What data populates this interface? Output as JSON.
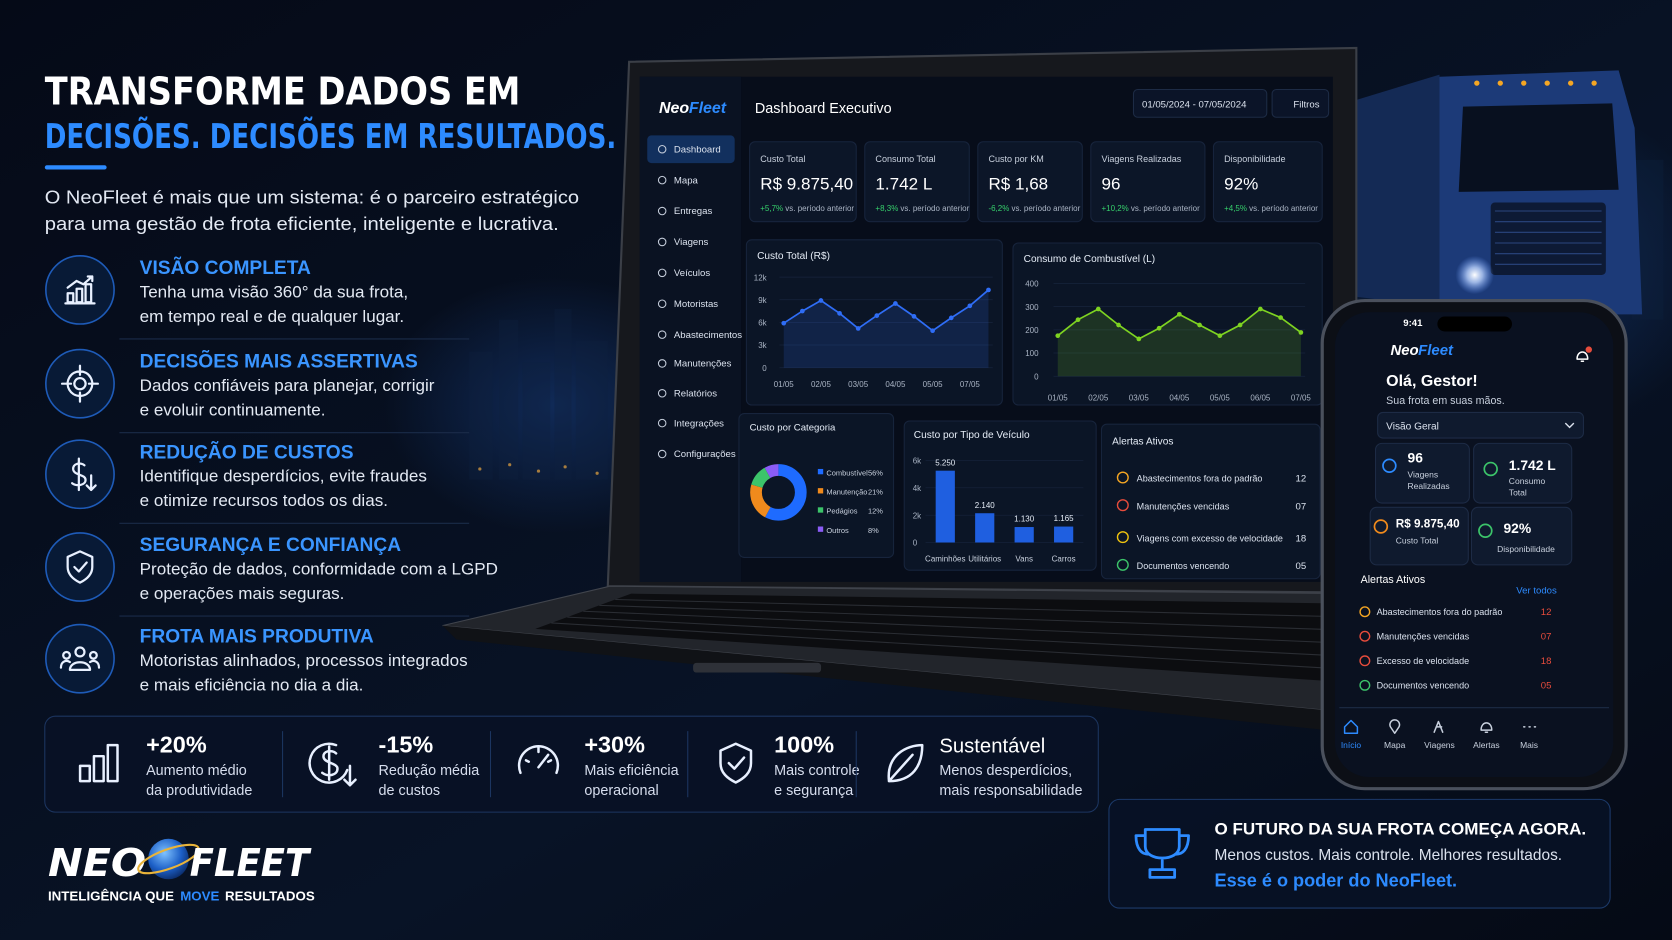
{
  "header": {
    "title_line1": "TRANSFORME DADOS EM",
    "title_line2": "DECISÕES. DECISÕES EM RESULTADOS.",
    "intro": [
      "O NeoFleet é mais que um sistema: é o parceiro estratégico",
      "para uma gestão de frota eficiente, inteligente e lucrativa."
    ]
  },
  "features": [
    {
      "title": "VISÃO COMPLETA",
      "description": [
        "Tenha uma visão 360° da sua frota,",
        "em tempo real e de qualquer lugar."
      ]
    },
    {
      "title": "DECISÕES MAIS ASSERTIVAS",
      "description": [
        "Dados confiáveis para planejar, corrigir",
        "e evoluir continuamente."
      ]
    },
    {
      "title": "REDUÇÃO DE CUSTOS",
      "description": [
        "Identifique desperdícios, evite fraudes",
        "e otimize recursos todos os dias."
      ]
    },
    {
      "title": "SEGURANÇA E CONFIANÇA",
      "description": [
        "Proteção de dados, conformidade com a LGPD",
        "e operações mais seguras."
      ]
    },
    {
      "title": "FROTA MAIS PRODUTIVA",
      "description": [
        "Motoristas alinhados, processos integrados",
        "e mais eficiência no dia a dia."
      ]
    }
  ],
  "stats": [
    {
      "value": "+20%",
      "description": [
        "Aumento médio",
        "da produtividade"
      ]
    },
    {
      "value": "-15%",
      "description": [
        "Redução média",
        "de custos"
      ]
    },
    {
      "value": "+30%",
      "description": [
        "Mais eficiência",
        "operacional"
      ]
    },
    {
      "value": "100%",
      "description": [
        "Mais controle",
        "e segurança"
      ]
    },
    {
      "value": "Sustentável",
      "description": [
        "Menos desperdícios,",
        "mais responsabilidade"
      ]
    }
  ],
  "brand": {
    "name_part1": "NEO",
    "name_part2": "FLEET",
    "tagline": [
      "INTELIGÊNCIA QUE",
      "MOVE",
      "RESULTADOS"
    ]
  },
  "dashboard": {
    "logo": [
      "Neo",
      "Fleet"
    ],
    "menu": [
      "Dashboard",
      "Mapa",
      "Entregas",
      "Viagens",
      "Veículos",
      "Motoristas",
      "Abastecimentos",
      "Manutenções",
      "Relatórios",
      "Integrações",
      "Configurações"
    ],
    "title": "Dashboard Executivo",
    "date_range": "01/05/2024 - 07/05/2024",
    "filter_button": "Filtros",
    "kpis": [
      {
        "label": "Custo Total",
        "value": "R$ 9.875,40",
        "change": "+5,7%",
        "comparison": "vs. período anterior"
      },
      {
        "label": "Consumo Total",
        "value": "1.742 L",
        "change": "+8,3%",
        "comparison": "vs. período anterior"
      },
      {
        "label": "Custo por KM",
        "value": "R$ 1,68",
        "change": "-6,2%",
        "comparison": "vs. período anterior"
      },
      {
        "label": "Viagens Realizadas",
        "value": "96",
        "change": "+10,2%",
        "comparison": "vs. período anterior"
      },
      {
        "label": "Disponibilidade",
        "value": "92%",
        "change": "+4,5%",
        "comparison": "vs. período anterior"
      }
    ],
    "cost_chart": {
      "type": "line",
      "title": "Custo Total (R$)",
      "categories": [
        "01/05",
        null,
        "02/05",
        null,
        "03/05",
        null,
        "04/05",
        null,
        "05/05",
        null,
        "07/05",
        null
      ],
      "values": [
        5900,
        7500,
        8900,
        7200,
        5200,
        6900,
        8500,
        6800,
        4900,
        6600,
        8200,
        10300
      ],
      "ylim": [
        0,
        12000
      ],
      "yticks": [
        0,
        {
          "value": 3000,
          "label": "3k"
        },
        {
          "value": 6000,
          "label": "6k"
        },
        {
          "value": 9000,
          "label": "9k"
        },
        {
          "value": 12000,
          "label": "12k"
        }
      ],
      "color": "#2f6df6"
    },
    "fuel_chart": {
      "type": "line",
      "title": "Consumo de Combustível (L)",
      "categories": [
        "01/05",
        null,
        "02/05",
        null,
        "03/05",
        null,
        "04/05",
        null,
        "05/05",
        null,
        "06/05",
        null,
        "07/05"
      ],
      "values": [
        175,
        244,
        290,
        221,
        161,
        207,
        267,
        221,
        175,
        221,
        290,
        253,
        189
      ],
      "ylim": [
        0,
        400
      ],
      "yticks": [
        0,
        100,
        200,
        300,
        400
      ],
      "color": "#7ed321"
    },
    "category_chart": {
      "type": "pie",
      "title": "Custo por Categoria",
      "categories": [
        "Combustível",
        "Manutenção",
        "Pedágios",
        "Outros"
      ],
      "values": [
        56,
        21,
        12,
        8
      ],
      "value_labels": [
        "56%",
        "21%",
        "12%",
        "8%"
      ],
      "colors": [
        "#1e6bff",
        "#f08a1c",
        "#3cc46a",
        "#8b5cf6"
      ]
    },
    "vehicle_chart": {
      "type": "bar",
      "title": "Custo por Tipo de Veículo",
      "categories": [
        "Caminhões",
        "Utilitários",
        "Vans",
        "Carros"
      ],
      "values": [
        5250,
        2140,
        1130,
        1165
      ],
      "value_labels": [
        "5.250",
        "2.140",
        "1.130",
        "1.165"
      ],
      "ylim": [
        0,
        6000
      ],
      "yticks": [
        0,
        {
          "value": 2000,
          "label": "2k"
        },
        {
          "value": 4000,
          "label": "4k"
        },
        {
          "value": 6000,
          "label": "6k"
        }
      ],
      "color": "#1f5fe0"
    },
    "alerts": {
      "title": "Alertas Ativos",
      "items": [
        {
          "label": "Abastecimentos fora do padrão",
          "count": "12"
        },
        {
          "label": "Manutenções vencidas",
          "count": "07"
        },
        {
          "label": "Viagens com excesso de velocidade",
          "count": "18"
        },
        {
          "label": "Documentos vencendo",
          "count": "05"
        }
      ]
    }
  },
  "phone": {
    "time": "9:41",
    "logo": [
      "Neo",
      "Fleet"
    ],
    "greeting": "Olá, Gestor!",
    "subtitle": "Sua frota em suas mãos.",
    "view_selector": "Visão Geral",
    "cards": [
      {
        "value": "96",
        "label": [
          "Viagens",
          "Realizadas"
        ]
      },
      {
        "value": "1.742 L",
        "label": [
          "Consumo",
          "Total"
        ]
      },
      {
        "value": "R$ 9.875,40",
        "label": [
          "Custo Total"
        ]
      },
      {
        "value": "92%",
        "label": [
          "Disponibilidade"
        ]
      }
    ],
    "alerts": {
      "title": "Alertas Ativos",
      "link": "Ver todos",
      "items": [
        {
          "label": "Abastecimentos fora do padrão",
          "count": "12"
        },
        {
          "label": "Manutenções vencidas",
          "count": "07"
        },
        {
          "label": "Excesso de velocidade",
          "count": "18"
        },
        {
          "label": "Documentos vencendo",
          "count": "05"
        }
      ]
    },
    "nav": [
      "Início",
      "Mapa",
      "Viagens",
      "Alertas",
      "Mais"
    ]
  },
  "cta": {
    "title": "O FUTURO DA SUA FROTA COMEÇA AGORA.",
    "line1": "Menos custos. Mais controle. Melhores resultados.",
    "line2": "Esse é o poder do NeoFleet."
  }
}
